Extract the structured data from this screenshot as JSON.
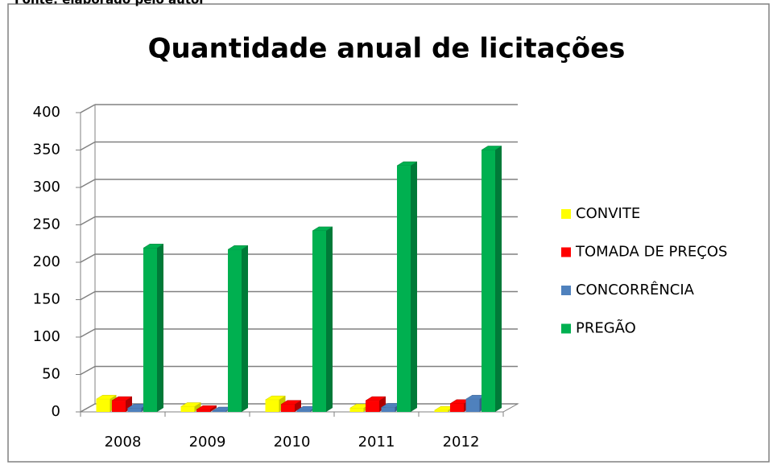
{
  "source_note": "Fonte: elaborado pelo autor",
  "chart_data": {
    "type": "bar3d",
    "title": "Quantidade anual de licitações",
    "categories": [
      "2008",
      "2009",
      "2010",
      "2011",
      "2012"
    ],
    "series": [
      {
        "name": "CONVITE",
        "color": "#ffff00",
        "side": "#c8c800",
        "values": [
          17,
          7,
          16,
          5,
          2
        ]
      },
      {
        "name": "TOMADA DE PREÇOS",
        "color": "#ff0000",
        "side": "#b00000",
        "values": [
          15,
          3,
          10,
          15,
          11
        ]
      },
      {
        "name": "CONCORRÊNCIA",
        "color": "#4f81bd",
        "side": "#385d8a",
        "values": [
          5,
          1,
          2,
          6,
          17
        ]
      },
      {
        "name": "PREGÃO",
        "color": "#00b050",
        "side": "#007a38",
        "values": [
          219,
          217,
          242,
          329,
          350
        ]
      }
    ],
    "ylim": [
      0,
      400
    ],
    "yticks": [
      0,
      50,
      100,
      150,
      200,
      250,
      300,
      350,
      400
    ],
    "grid": true,
    "legend": "right"
  }
}
